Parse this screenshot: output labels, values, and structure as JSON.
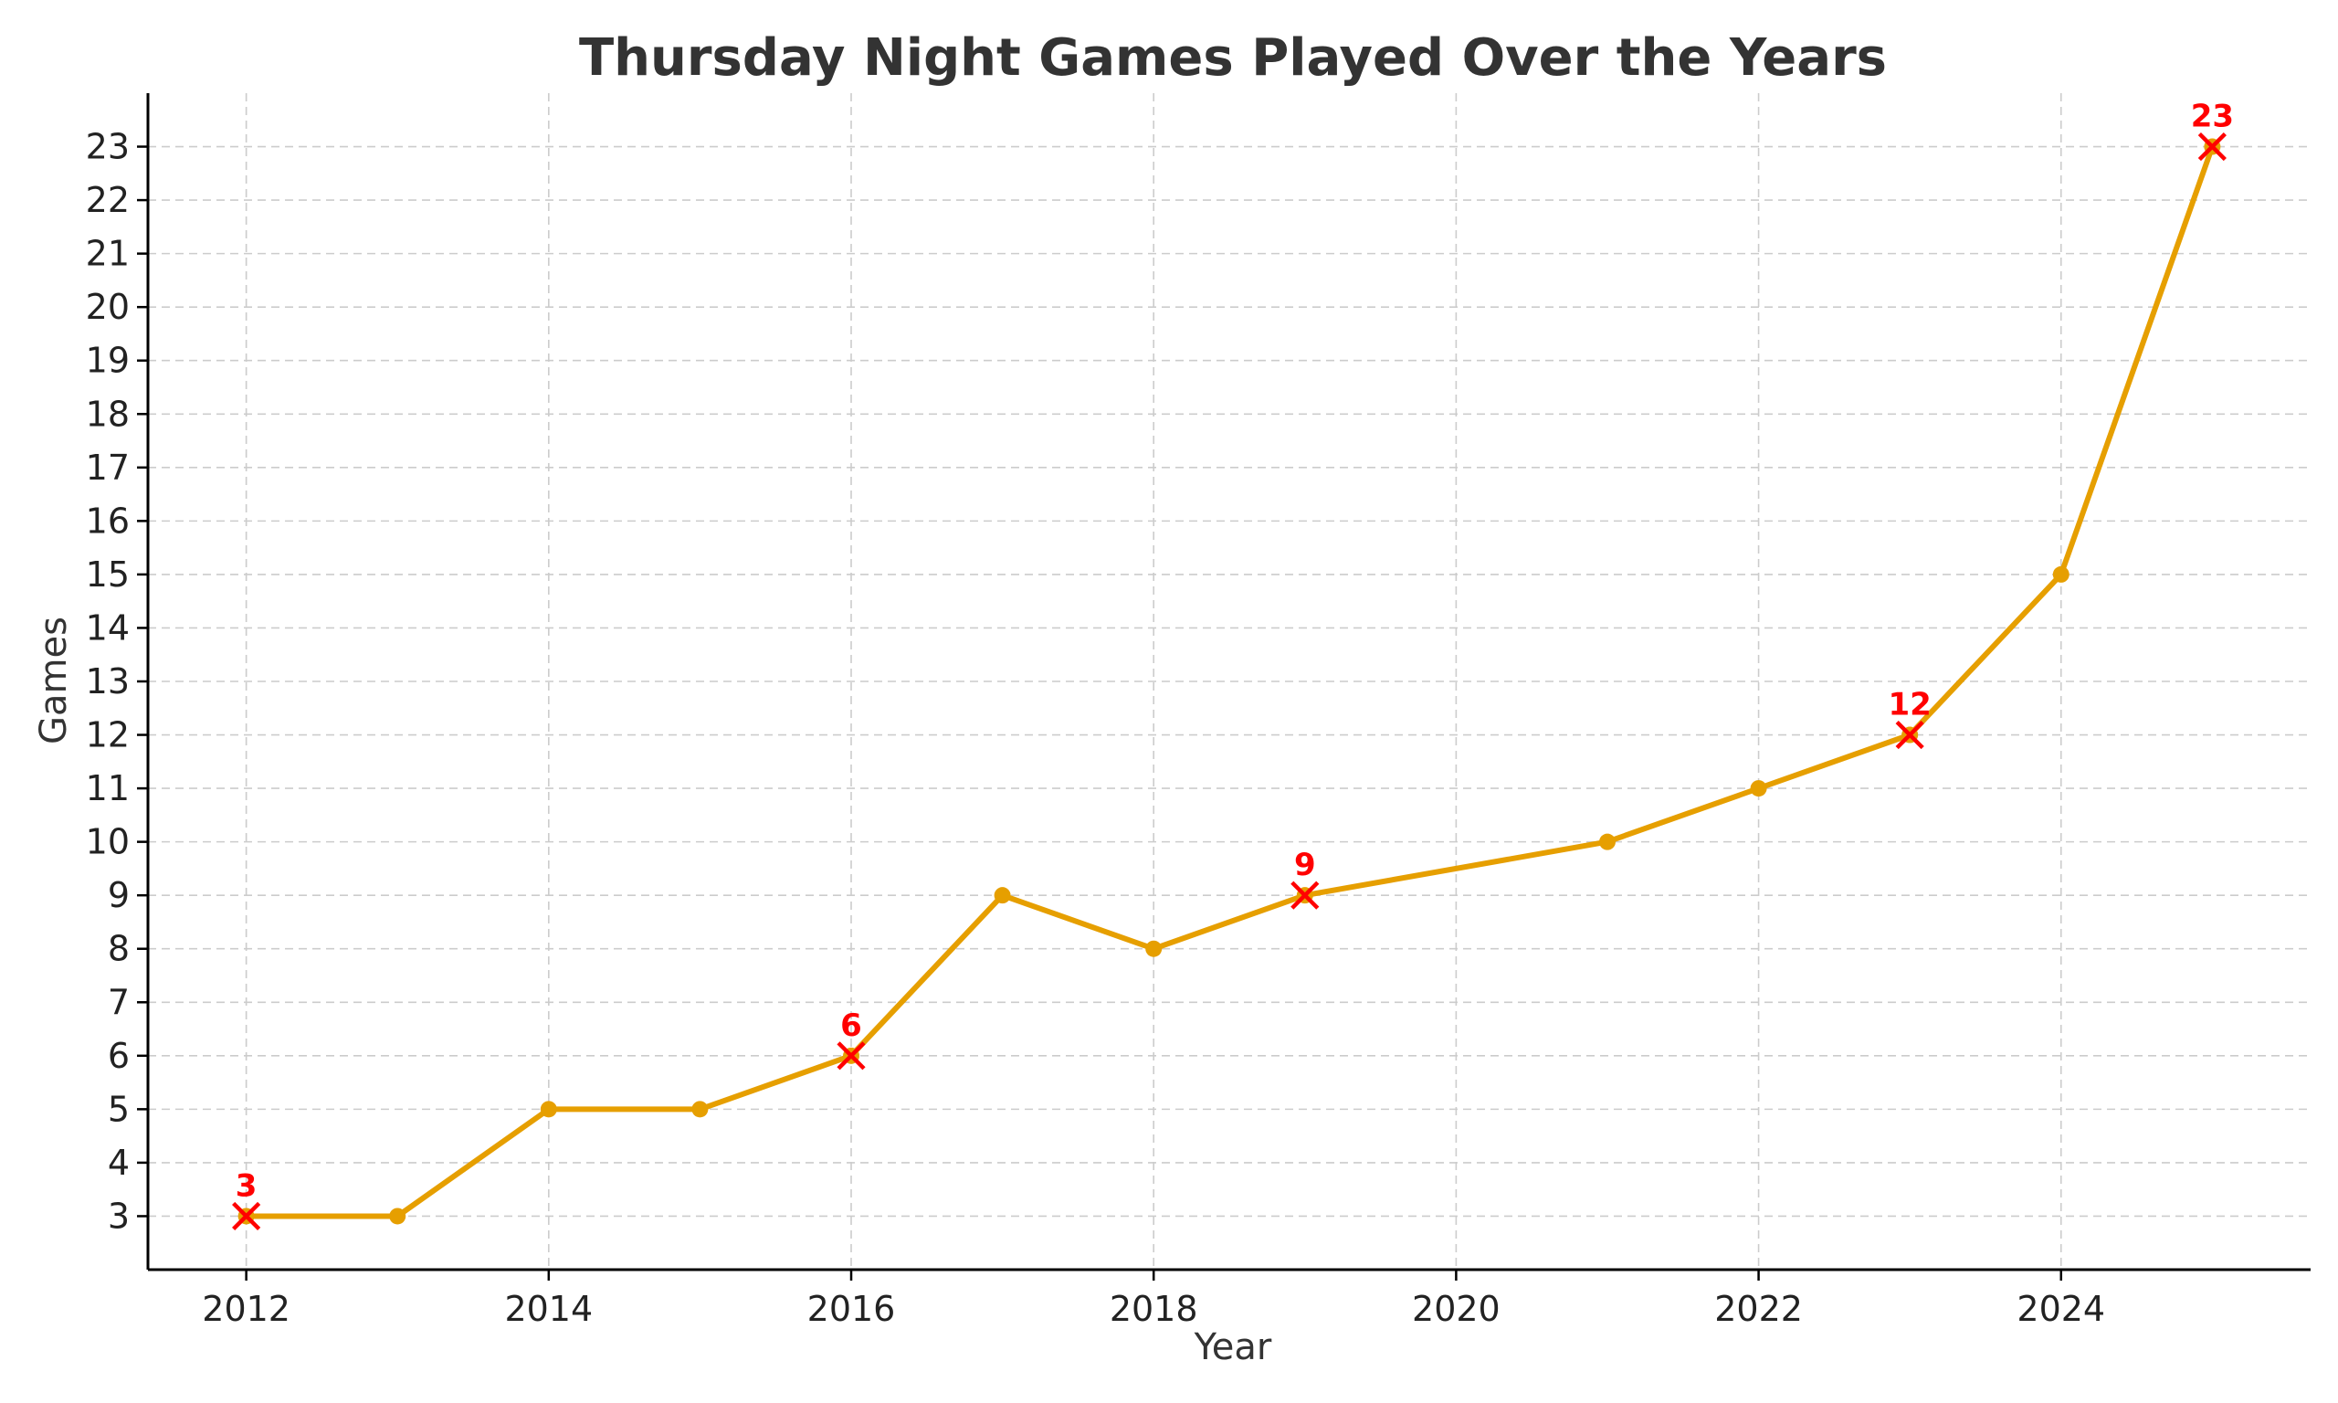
{
  "chart_data": {
    "type": "line",
    "title": "Thursday Night Games Played Over the Years",
    "xlabel": "Year",
    "ylabel": "Games",
    "xlim": [
      2011.35,
      2025.65
    ],
    "ylim": [
      2,
      24
    ],
    "x_ticks": [
      2012,
      2014,
      2016,
      2018,
      2020,
      2022,
      2024
    ],
    "y_ticks": [
      3,
      4,
      5,
      6,
      7,
      8,
      9,
      10,
      11,
      12,
      13,
      14,
      15,
      16,
      17,
      18,
      19,
      20,
      21,
      22,
      23
    ],
    "grid": true,
    "line_color": "#E69F00",
    "highlight_color": "#ff0000",
    "series": [
      {
        "x": [
          2012,
          2013,
          2014,
          2015,
          2016,
          2017,
          2018,
          2019,
          2021,
          2022,
          2023,
          2024,
          2025
        ],
        "values": [
          3,
          3,
          5,
          5,
          6,
          9,
          8,
          9,
          10,
          11,
          12,
          15,
          23
        ]
      }
    ],
    "highlights": [
      {
        "x": 2012,
        "y": 3,
        "label": "3"
      },
      {
        "x": 2016,
        "y": 6,
        "label": "6"
      },
      {
        "x": 2019,
        "y": 9,
        "label": "9"
      },
      {
        "x": 2023,
        "y": 12,
        "label": "12"
      },
      {
        "x": 2025,
        "y": 23,
        "label": "23"
      }
    ]
  }
}
